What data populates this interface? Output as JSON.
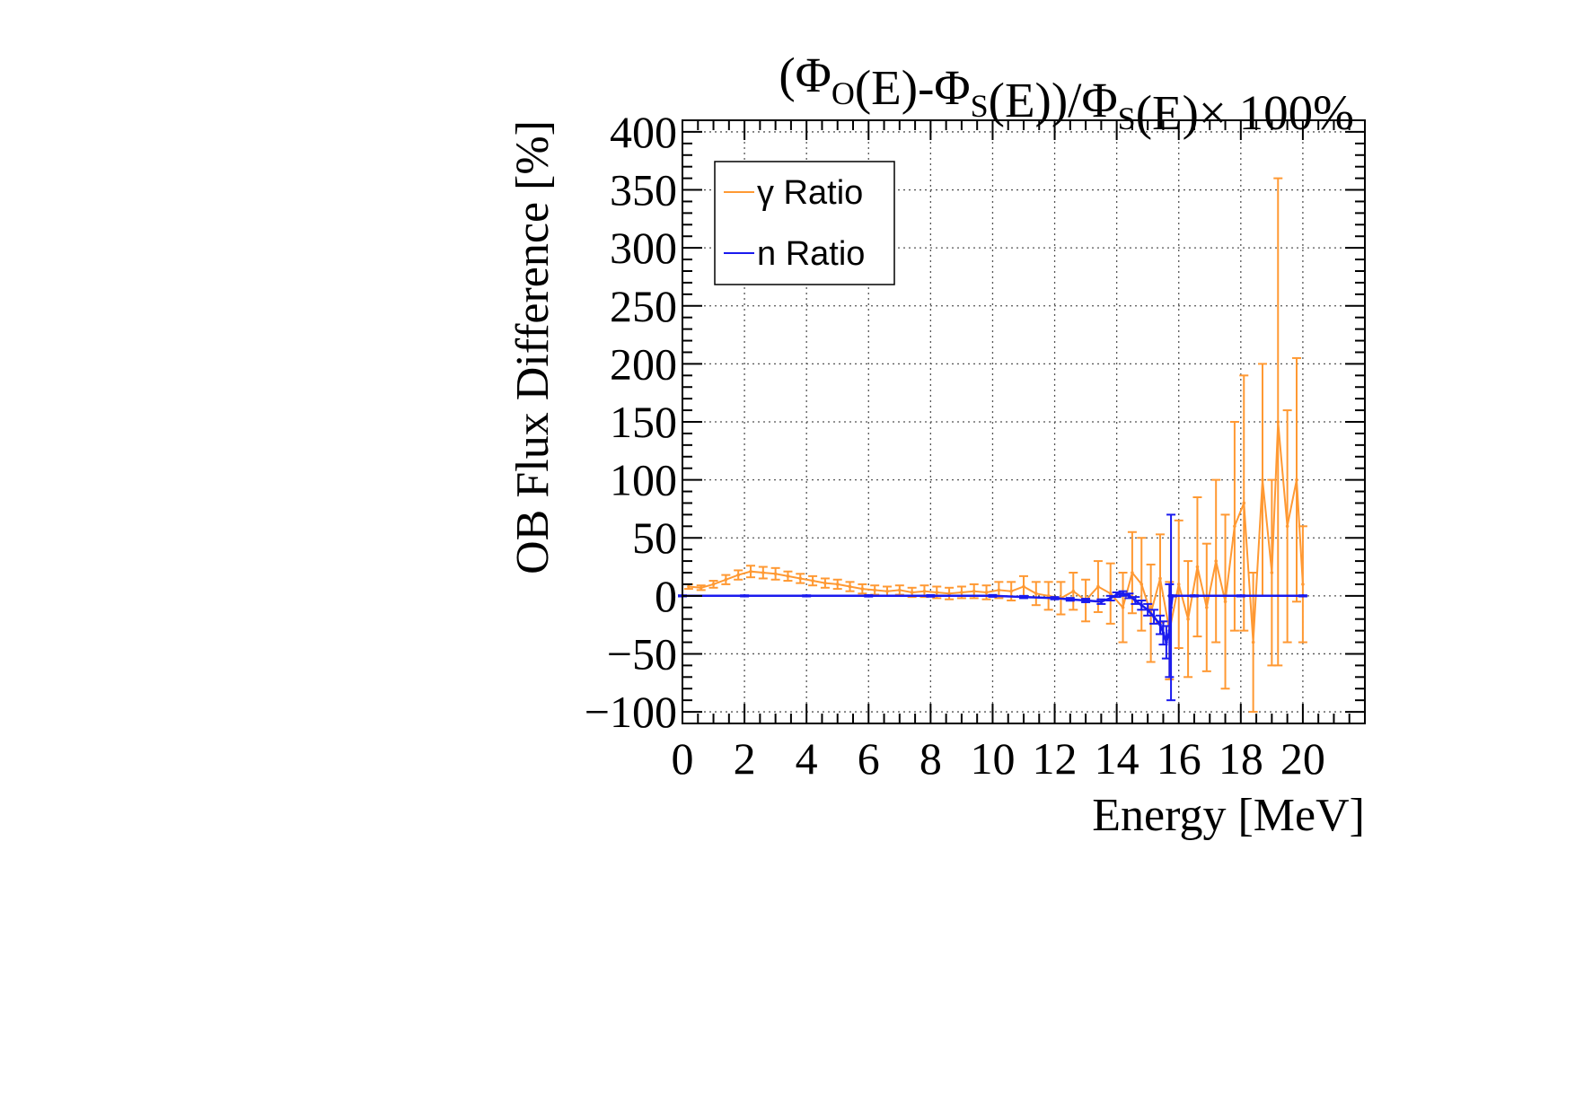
{
  "chart_data": {
    "type": "line",
    "title": {
      "parts": [
        {
          "text": "(Φ",
          "sub": false
        },
        {
          "text": "O",
          "sub": true
        },
        {
          "text": "(E)-Φ",
          "sub": false
        },
        {
          "text": "S",
          "sub": true
        },
        {
          "text": "(E))/Φ",
          "sub": false
        },
        {
          "text": "S",
          "sub": true
        },
        {
          "text": "(E)× 100%",
          "sub": false
        }
      ]
    },
    "xlabel": "Energy [MeV]",
    "ylabel": "OB Flux Difference [%]",
    "xlim": [
      0,
      22
    ],
    "ylim": [
      -110,
      410
    ],
    "x_ticks": [
      0,
      2,
      4,
      6,
      8,
      10,
      12,
      14,
      16,
      18,
      20
    ],
    "y_ticks": [
      400,
      350,
      300,
      250,
      200,
      150,
      100,
      50,
      0,
      -50,
      -100
    ],
    "x_tick_labels": [
      "0",
      "2",
      "4",
      "6",
      "8",
      "10",
      "12",
      "14",
      "16",
      "18",
      "20"
    ],
    "y_tick_labels": [
      "400",
      "350",
      "300",
      "250",
      "200",
      "150",
      "100",
      "50",
      "0",
      "−50",
      "−100"
    ],
    "grid": true,
    "legend_position": "top-left",
    "series": [
      {
        "name": "γ Ratio",
        "color": "#ff9933",
        "points": [
          [
            0.2,
            8,
            2
          ],
          [
            0.6,
            7,
            2
          ],
          [
            1.0,
            10,
            3
          ],
          [
            1.4,
            14,
            4
          ],
          [
            1.8,
            18,
            4
          ],
          [
            2.2,
            21,
            5
          ],
          [
            2.6,
            20,
            5
          ],
          [
            3.0,
            19,
            5
          ],
          [
            3.4,
            17,
            4
          ],
          [
            3.8,
            15,
            4
          ],
          [
            4.2,
            13,
            4
          ],
          [
            4.6,
            11,
            4
          ],
          [
            5.0,
            10,
            4
          ],
          [
            5.4,
            8,
            4
          ],
          [
            5.8,
            6,
            4
          ],
          [
            6.2,
            5,
            4
          ],
          [
            6.6,
            4,
            4
          ],
          [
            7.0,
            5,
            4
          ],
          [
            7.4,
            3,
            4
          ],
          [
            7.8,
            4,
            5
          ],
          [
            8.2,
            3,
            5
          ],
          [
            8.6,
            2,
            5
          ],
          [
            9.0,
            3,
            5
          ],
          [
            9.4,
            4,
            6
          ],
          [
            9.8,
            3,
            6
          ],
          [
            10.2,
            5,
            7
          ],
          [
            10.6,
            4,
            8
          ],
          [
            11.0,
            8,
            9
          ],
          [
            11.4,
            2,
            10
          ],
          [
            11.8,
            0,
            12
          ],
          [
            12.2,
            -2,
            14
          ],
          [
            12.6,
            4,
            16
          ],
          [
            13.0,
            -4,
            18
          ],
          [
            13.4,
            8,
            22
          ],
          [
            13.8,
            2,
            26
          ],
          [
            14.2,
            -10,
            30
          ],
          [
            14.5,
            20,
            35
          ],
          [
            14.8,
            10,
            40
          ],
          [
            15.1,
            -15,
            42
          ],
          [
            15.4,
            15,
            38
          ],
          [
            15.7,
            -30,
            42
          ],
          [
            16.0,
            10,
            55
          ],
          [
            16.3,
            -20,
            50
          ],
          [
            16.6,
            25,
            60
          ],
          [
            16.9,
            -10,
            55
          ],
          [
            17.2,
            30,
            70
          ],
          [
            17.5,
            -5,
            75
          ],
          [
            17.8,
            60,
            90
          ],
          [
            18.1,
            80,
            110
          ],
          [
            18.4,
            -40,
            60
          ],
          [
            18.7,
            100,
            100
          ],
          [
            19.0,
            20,
            80
          ],
          [
            19.2,
            150,
            210
          ],
          [
            19.5,
            60,
            100
          ],
          [
            19.8,
            100,
            105
          ],
          [
            20.0,
            10,
            50
          ]
        ]
      },
      {
        "name": "n Ratio",
        "color": "#1a1aee",
        "points": [
          [
            0.0,
            0,
            0.5
          ],
          [
            2.0,
            0,
            0.5
          ],
          [
            4.0,
            0,
            0.5
          ],
          [
            6.0,
            0,
            0.6
          ],
          [
            8.0,
            0,
            0.7
          ],
          [
            10.0,
            0,
            0.8
          ],
          [
            11.0,
            -1,
            1
          ],
          [
            12.0,
            -2,
            1
          ],
          [
            12.5,
            -3,
            1.2
          ],
          [
            13.0,
            -4,
            1.5
          ],
          [
            13.5,
            -5,
            2
          ],
          [
            13.8,
            -2,
            2
          ],
          [
            14.0,
            1,
            2
          ],
          [
            14.2,
            2,
            2
          ],
          [
            14.4,
            0,
            2
          ],
          [
            14.6,
            -4,
            3
          ],
          [
            14.8,
            -8,
            4
          ],
          [
            15.0,
            -12,
            5
          ],
          [
            15.2,
            -18,
            6
          ],
          [
            15.4,
            -25,
            8
          ],
          [
            15.5,
            -32,
            10
          ],
          [
            15.6,
            -40,
            14
          ],
          [
            15.7,
            -30,
            40
          ],
          [
            15.75,
            -10,
            80
          ],
          [
            15.8,
            0,
            0.5
          ],
          [
            16.5,
            0,
            0.5
          ],
          [
            18.0,
            0,
            0.5
          ],
          [
            20.0,
            0,
            0.5
          ]
        ]
      }
    ]
  }
}
